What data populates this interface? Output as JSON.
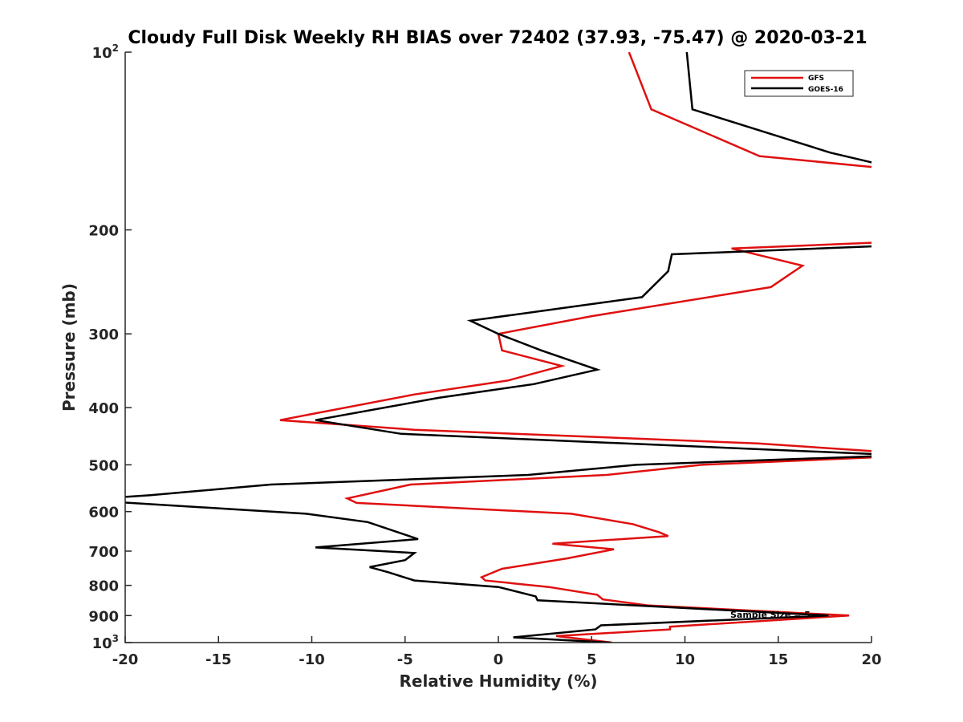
{
  "chart_data": {
    "type": "line",
    "title": "Cloudy Full Disk Weekly RH BIAS over 72402 (37.93, -75.47) @ 2020-03-21",
    "xlabel": "Relative Humidity (%)",
    "ylabel": "Pressure (mb)",
    "xlim": [
      -20,
      20
    ],
    "ylim": [
      100,
      1000
    ],
    "y_scale": "log",
    "y_reversed": true,
    "x_ticks": [
      {
        "value": -20,
        "label": "-20"
      },
      {
        "value": -15,
        "label": "-15"
      },
      {
        "value": -10,
        "label": "-10"
      },
      {
        "value": -5,
        "label": "-5"
      },
      {
        "value": 0,
        "label": "0"
      },
      {
        "value": 5,
        "label": "5"
      },
      {
        "value": 10,
        "label": "10"
      },
      {
        "value": 15,
        "label": "15"
      },
      {
        "value": 20,
        "label": "20"
      }
    ],
    "y_ticks": [
      {
        "value": 100,
        "base": "10",
        "exp": "2"
      },
      {
        "value": 200,
        "base": "200",
        "exp": ""
      },
      {
        "value": 300,
        "base": "300",
        "exp": ""
      },
      {
        "value": 400,
        "base": "400",
        "exp": ""
      },
      {
        "value": 500,
        "base": "500",
        "exp": ""
      },
      {
        "value": 600,
        "base": "600",
        "exp": ""
      },
      {
        "value": 700,
        "base": "700",
        "exp": ""
      },
      {
        "value": 800,
        "base": "800",
        "exp": ""
      },
      {
        "value": 900,
        "base": "900",
        "exp": ""
      },
      {
        "value": 1000,
        "base": "10",
        "exp": "3"
      }
    ],
    "grid": false,
    "legend_position": "top-right",
    "annotation": "Sample Size = 5",
    "series": [
      {
        "name": "GFS",
        "color": "#e01010",
        "points": [
          [
            7.0,
            100
          ],
          [
            8.2,
            125
          ],
          [
            14.0,
            150
          ],
          [
            20.5,
            157
          ],
          [
            20.5,
            210
          ],
          [
            12.5,
            215
          ],
          [
            16.3,
            230
          ],
          [
            14.6,
            250
          ],
          [
            5.0,
            280
          ],
          [
            0.0,
            300
          ],
          [
            0.2,
            320
          ],
          [
            3.4,
            340
          ],
          [
            0.5,
            360
          ],
          [
            -4.5,
            380
          ],
          [
            -11.7,
            420
          ],
          [
            -4.5,
            436
          ],
          [
            13.9,
            460
          ],
          [
            20.5,
            475
          ],
          [
            20.5,
            485
          ],
          [
            10.9,
            500
          ],
          [
            5.8,
            520
          ],
          [
            -4.7,
            540
          ],
          [
            -8.1,
            570
          ],
          [
            -7.6,
            580
          ],
          [
            3.9,
            605
          ],
          [
            7.2,
            630
          ],
          [
            8.6,
            650
          ],
          [
            9.1,
            660
          ],
          [
            2.9,
            680
          ],
          [
            6.2,
            695
          ],
          [
            3.7,
            720
          ],
          [
            0.2,
            750
          ],
          [
            -0.9,
            775
          ],
          [
            -0.7,
            785
          ],
          [
            2.7,
            805
          ],
          [
            5.3,
            830
          ],
          [
            5.6,
            845
          ],
          [
            8.0,
            865
          ],
          [
            18.8,
            900
          ],
          [
            9.2,
            940
          ],
          [
            9.2,
            950
          ],
          [
            3.1,
            975
          ],
          [
            6.1,
            1000
          ]
        ]
      },
      {
        "name": "GOES-16",
        "color": "#000000",
        "points": [
          [
            10.1,
            100
          ],
          [
            10.4,
            125
          ],
          [
            17.8,
            148
          ],
          [
            20.5,
            155
          ],
          [
            20.5,
            213
          ],
          [
            9.3,
            220
          ],
          [
            9.1,
            235
          ],
          [
            7.7,
            260
          ],
          [
            -1.5,
            285
          ],
          [
            0.0,
            300
          ],
          [
            2.3,
            320
          ],
          [
            5.3,
            345
          ],
          [
            1.9,
            365
          ],
          [
            -3.2,
            385
          ],
          [
            -9.8,
            420
          ],
          [
            -5.2,
            443
          ],
          [
            20.5,
            480
          ],
          [
            20.5,
            483
          ],
          [
            7.4,
            500
          ],
          [
            1.6,
            520
          ],
          [
            -12.2,
            540
          ],
          [
            -18.7,
            563
          ],
          [
            -20.5,
            568
          ],
          [
            -20.5,
            578
          ],
          [
            -10.3,
            605
          ],
          [
            -7.0,
            625
          ],
          [
            -4.3,
            668
          ],
          [
            -9.8,
            690
          ],
          [
            -4.5,
            705
          ],
          [
            -5.0,
            725
          ],
          [
            -6.9,
            745
          ],
          [
            -5.9,
            760
          ],
          [
            -4.5,
            785
          ],
          [
            0.0,
            805
          ],
          [
            2.0,
            835
          ],
          [
            2.1,
            848
          ],
          [
            17.7,
            900
          ],
          [
            5.5,
            935
          ],
          [
            5.2,
            950
          ],
          [
            0.8,
            980
          ],
          [
            6.0,
            1000
          ]
        ]
      }
    ]
  }
}
